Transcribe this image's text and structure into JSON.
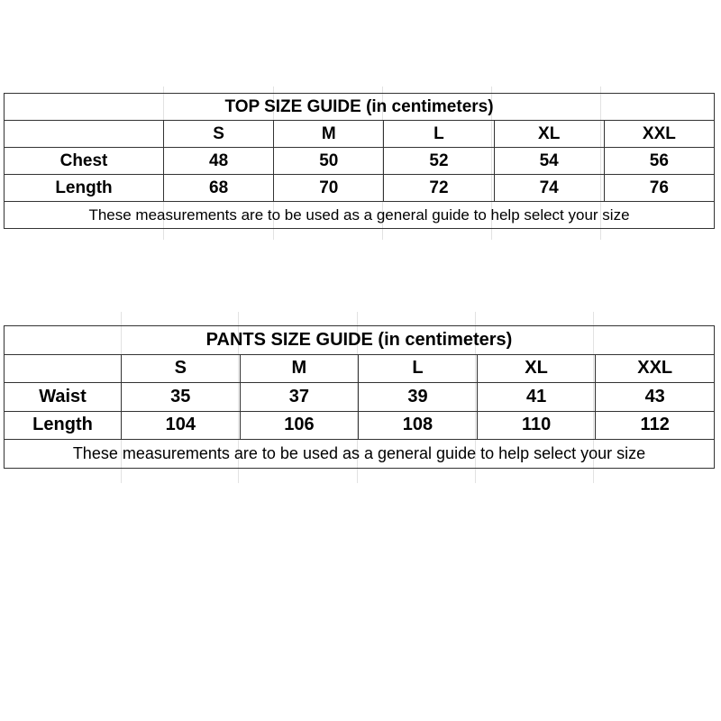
{
  "top_guide": {
    "title": "TOP SIZE GUIDE (in centimeters)",
    "sizes": [
      "S",
      "M",
      "L",
      "XL",
      "XXL"
    ],
    "rows": [
      {
        "label": "Chest",
        "values": [
          "48",
          "50",
          "52",
          "54",
          "56"
        ]
      },
      {
        "label": "Length",
        "values": [
          "68",
          "70",
          "72",
          "74",
          "76"
        ]
      }
    ],
    "note": "These measurements are to be used as a general guide to help select your size"
  },
  "pants_guide": {
    "title": "PANTS SIZE GUIDE (in centimeters)",
    "sizes": [
      "S",
      "M",
      "L",
      "XL",
      "XXL"
    ],
    "rows": [
      {
        "label": "Waist",
        "values": [
          "35",
          "37",
          "39",
          "41",
          "43"
        ]
      },
      {
        "label": "Length",
        "values": [
          "104",
          "106",
          "108",
          "110",
          "112"
        ]
      }
    ],
    "note": "These measurements are to be used as a general guide to help select your size"
  }
}
